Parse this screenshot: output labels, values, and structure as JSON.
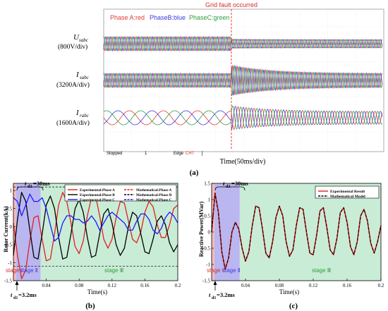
{
  "panel_a": {
    "fault_label": "Grid fault occurred",
    "legend": [
      {
        "text": "Phase A:red",
        "color": "#e53935"
      },
      {
        "text": "PhaseB:blue",
        "color": "#3b3bdc"
      },
      {
        "text": "PhaseC:green",
        "color": "#2e9e3e"
      }
    ],
    "rows": [
      {
        "sym": "U",
        "sub": "sabc",
        "scale": "(800V/div)"
      },
      {
        "sym": "I",
        "sub": "sabc",
        "scale": "(3200A/div)"
      },
      {
        "sym": "I",
        "sub": "rabc",
        "scale": "(1600A/div)"
      }
    ],
    "status": {
      "left": "Stopped",
      "num": "1",
      "edge": "Edge",
      "ch": "CH7",
      "f": "ʃ"
    },
    "xlabel": "Time(50ms/div)",
    "letter": "(a)"
  },
  "panel_b": {
    "ylabel": "Rotor Current(kA)",
    "xlabel": "Time(s)",
    "letter": "(b)",
    "t_d2": "t",
    "t_d2_sub": "d2",
    "t_d2_val": "=30ms",
    "t_d1": "t",
    "t_d1_sub": "d1",
    "t_d1_val": "=3.2ms",
    "stage1": "stage Ⅰ",
    "stage2": "stage Ⅱ",
    "stage3": "stage Ⅲ",
    "legend": [
      {
        "text": "Experimental:Phase A",
        "color": "#e02020",
        "dash": false
      },
      {
        "text": "Experimental:Phase B",
        "color": "#000000",
        "dash": false
      },
      {
        "text": "Experimental:Phase C",
        "color": "#1a1aff",
        "dash": false
      },
      {
        "text": "Mathematical:Phase A",
        "color": "#e02020",
        "dash": true
      },
      {
        "text": "Mathematical:Phase B",
        "color": "#000000",
        "dash": true
      },
      {
        "text": "Mathematical:Phase C",
        "color": "#1a1aff",
        "dash": true
      }
    ]
  },
  "panel_c": {
    "ylabel": "Reactive Power(MVar)",
    "xlabel": "Time(s)",
    "letter": "(c)",
    "t_d2": "t",
    "t_d2_sub": "d2",
    "t_d2_val": "=30ms",
    "t_d1": "t",
    "t_d1_sub": "d1",
    "t_d1_val": "=3.2ms",
    "stage1": "stage Ⅰ",
    "stage2": "stage Ⅱ",
    "stage3": "stage Ⅲ",
    "legend": [
      {
        "text": "Experimental Result",
        "color": "#e02020",
        "dash": false
      },
      {
        "text": "Mathematical Model",
        "color": "#000000",
        "dash": true
      }
    ]
  },
  "chart_data": [
    {
      "type": "line",
      "title": "",
      "xlabel": "Time(50ms/div)",
      "ylabel": "",
      "note": "Oscilloscope capture of stator voltage, stator current and rotor current before and after grid fault",
      "series": [
        {
          "name": "Phase A:red"
        },
        {
          "name": "PhaseB:blue"
        },
        {
          "name": "PhaseC:green"
        }
      ]
    },
    {
      "type": "line",
      "xlabel": "Time(s)",
      "ylabel": "Rotor Current(kA)",
      "xlim": [
        0,
        0.2
      ],
      "ylim": [
        -1.5,
        1.2
      ],
      "xticks": [
        0.04,
        0.08,
        0.12,
        0.16,
        0.2
      ],
      "yticks": [
        -1.5,
        -1,
        -0.5,
        0,
        0.5,
        1
      ],
      "regions": [
        {
          "name": "stage Ⅰ",
          "x": [
            0,
            0.0032
          ],
          "color": "#f7b8b8"
        },
        {
          "name": "stage Ⅱ",
          "x": [
            0.0032,
            0.0332
          ],
          "color": "#b9b6f0"
        },
        {
          "name": "stage Ⅲ",
          "x": [
            0.0332,
            0.2
          ],
          "color": "#c9ecd6"
        }
      ],
      "hlines": [
        1.1,
        -1.1
      ],
      "series": [
        {
          "name": "Experimental:Phase A",
          "x": [
            0,
            0.005,
            0.01,
            0.015,
            0.02,
            0.025,
            0.03,
            0.035,
            0.04,
            0.045,
            0.05,
            0.055,
            0.06,
            0.065,
            0.07,
            0.075,
            0.08,
            0.085,
            0.09,
            0.095,
            0.1,
            0.105,
            0.11,
            0.115,
            0.12,
            0.125,
            0.13,
            0.135,
            0.14,
            0.145,
            0.15,
            0.155,
            0.16,
            0.165,
            0.17,
            0.175,
            0.18,
            0.185,
            0.19,
            0.195,
            0.2
          ],
          "y": [
            0.1,
            -0.8,
            -1.45,
            -1.2,
            -0.4,
            0.25,
            0.3,
            -0.35,
            -0.95,
            -0.9,
            -0.2,
            0.6,
            0.95,
            0.7,
            0.1,
            -0.55,
            -0.75,
            -0.4,
            0.3,
            0.8,
            0.85,
            0.3,
            -0.35,
            -0.6,
            -0.35,
            0.25,
            0.7,
            0.65,
            0.15,
            -0.35,
            -0.45,
            -0.15,
            0.4,
            0.7,
            0.55,
            0.05,
            -0.3,
            -0.3,
            0.05,
            0.5,
            0.6
          ]
        },
        {
          "name": "Experimental:Phase B",
          "x": [
            0,
            0.005,
            0.01,
            0.015,
            0.02,
            0.025,
            0.03,
            0.035,
            0.04,
            0.045,
            0.05,
            0.055,
            0.06,
            0.065,
            0.07,
            0.075,
            0.08,
            0.085,
            0.09,
            0.095,
            0.1,
            0.105,
            0.11,
            0.115,
            0.12,
            0.125,
            0.13,
            0.135,
            0.14,
            0.145,
            0.15,
            0.155,
            0.16,
            0.165,
            0.17,
            0.175,
            0.18,
            0.185,
            0.19,
            0.195,
            0.2
          ],
          "y": [
            -0.8,
            0.2,
            0.95,
            0.7,
            -0.1,
            -0.85,
            -0.9,
            -0.2,
            0.6,
            0.85,
            0.5,
            -0.3,
            -0.9,
            -0.85,
            -0.2,
            0.5,
            0.75,
            0.4,
            -0.3,
            -0.85,
            -0.8,
            -0.2,
            0.35,
            0.5,
            0.1,
            -0.5,
            -0.8,
            -0.6,
            0.0,
            0.4,
            0.3,
            -0.2,
            -0.7,
            -0.75,
            -0.35,
            0.15,
            0.3,
            0.05,
            -0.45,
            -0.7,
            -0.5
          ]
        },
        {
          "name": "Experimental:Phase C",
          "x": [
            0,
            0.005,
            0.01,
            0.015,
            0.02,
            0.025,
            0.03,
            0.035,
            0.04,
            0.045,
            0.05,
            0.055,
            0.06,
            0.065,
            0.07,
            0.075,
            0.08,
            0.085,
            0.09,
            0.095,
            0.1,
            0.105,
            0.11,
            0.115,
            0.12,
            0.125,
            0.13,
            0.135,
            0.14,
            0.145,
            0.15,
            0.155,
            0.16,
            0.165,
            0.17,
            0.175,
            0.18,
            0.185,
            0.19,
            0.195,
            0.2
          ],
          "y": [
            0.8,
            0.7,
            0.3,
            0.6,
            0.9,
            0.7,
            0.7,
            0.8,
            0.5,
            0.05,
            -0.4,
            -0.3,
            0.1,
            0.3,
            0.3,
            0.2,
            0.2,
            0.1,
            0.15,
            0.3,
            0.15,
            -0.1,
            0.1,
            0.3,
            0.4,
            0.3,
            0.2,
            0.1,
            -0.1,
            -0.1,
            0.15,
            0.35,
            0.35,
            0.2,
            -0.1,
            -0.2,
            -0.05,
            0.25,
            0.4,
            0.3,
            0.1
          ]
        }
      ]
    },
    {
      "type": "line",
      "xlabel": "Time(s)",
      "ylabel": "Reactive Power(MVar)",
      "xlim": [
        0,
        0.2
      ],
      "ylim": [
        -1.5,
        1.5
      ],
      "xticks": [
        0.04,
        0.08,
        0.12,
        0.16,
        0.2
      ],
      "yticks": [
        -1.5,
        -1,
        -0.5,
        0,
        0.5,
        1,
        1.5
      ],
      "regions": [
        {
          "name": "stage Ⅰ",
          "x": [
            0,
            0.0032
          ],
          "color": "#f7b8b8"
        },
        {
          "name": "stage Ⅱ",
          "x": [
            0.0032,
            0.0332
          ],
          "color": "#b9b6f0"
        },
        {
          "name": "stage Ⅲ",
          "x": [
            0.0332,
            0.2
          ],
          "color": "#c9ecd6"
        }
      ],
      "series": [
        {
          "name": "Experimental Result",
          "x": [
            0,
            0.004,
            0.008,
            0.012,
            0.016,
            0.02,
            0.024,
            0.028,
            0.032,
            0.036,
            0.04,
            0.044,
            0.048,
            0.052,
            0.056,
            0.06,
            0.064,
            0.068,
            0.072,
            0.076,
            0.08,
            0.084,
            0.088,
            0.092,
            0.096,
            0.1,
            0.104,
            0.108,
            0.112,
            0.116,
            0.12,
            0.124,
            0.128,
            0.132,
            0.136,
            0.14,
            0.144,
            0.148,
            0.152,
            0.156,
            0.16,
            0.164,
            0.168,
            0.172,
            0.176,
            0.18,
            0.184,
            0.188,
            0.192,
            0.196,
            0.2
          ],
          "y": [
            0,
            1.2,
            0.6,
            -0.6,
            -1.15,
            -0.8,
            0.0,
            0.3,
            0.1,
            -0.5,
            -0.9,
            -0.6,
            0.2,
            0.8,
            0.75,
            0.1,
            -0.65,
            -0.8,
            -0.3,
            0.45,
            0.8,
            0.5,
            -0.3,
            -0.75,
            -0.55,
            0.2,
            0.75,
            0.7,
            0.0,
            -0.65,
            -0.7,
            -0.1,
            0.65,
            0.75,
            0.15,
            -0.55,
            -0.7,
            -0.2,
            0.6,
            0.75,
            0.3,
            -0.45,
            -0.7,
            -0.3,
            0.5,
            0.7,
            0.35,
            -0.35,
            -0.65,
            -0.3,
            0.2
          ]
        },
        {
          "name": "Mathematical Model",
          "x": [
            0,
            0.004,
            0.008,
            0.012,
            0.016,
            0.02,
            0.024,
            0.028,
            0.032,
            0.036,
            0.04,
            0.044,
            0.048,
            0.052,
            0.056,
            0.06,
            0.064,
            0.068,
            0.072,
            0.076,
            0.08,
            0.084,
            0.088,
            0.092,
            0.096,
            0.1,
            0.104,
            0.108,
            0.112,
            0.116,
            0.12,
            0.124,
            0.128,
            0.132,
            0.136,
            0.14,
            0.144,
            0.148,
            0.152,
            0.156,
            0.16,
            0.164,
            0.168,
            0.172,
            0.176,
            0.18,
            0.184,
            0.188,
            0.192,
            0.196,
            0.2
          ],
          "y": [
            0,
            1.2,
            0.6,
            -0.6,
            -1.15,
            -0.8,
            0.0,
            0.3,
            0.1,
            -0.5,
            -0.9,
            -0.6,
            0.2,
            0.8,
            0.75,
            0.1,
            -0.65,
            -0.8,
            -0.3,
            0.45,
            0.8,
            0.5,
            -0.3,
            -0.75,
            -0.55,
            0.2,
            0.75,
            0.7,
            0.0,
            -0.65,
            -0.7,
            -0.1,
            0.65,
            0.75,
            0.15,
            -0.55,
            -0.7,
            -0.2,
            0.6,
            0.75,
            0.3,
            -0.45,
            -0.7,
            -0.3,
            0.5,
            0.7,
            0.35,
            -0.35,
            -0.65,
            -0.3,
            0.2
          ]
        }
      ]
    }
  ]
}
